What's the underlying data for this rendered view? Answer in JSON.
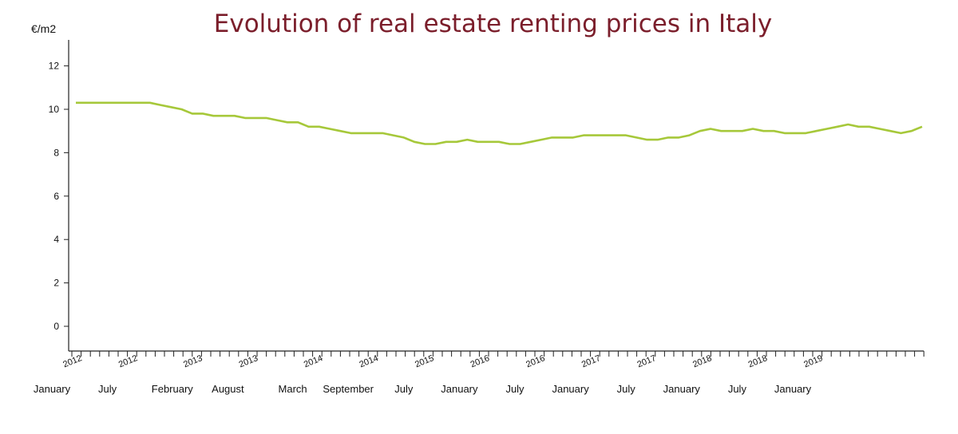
{
  "chart_data": {
    "type": "line",
    "title": "Evolution of real estate renting prices in Italy",
    "ylabel": "€/m2",
    "xlabel": "",
    "ylim": [
      -1.2,
      13
    ],
    "yticks": [
      0,
      2,
      4,
      6,
      8,
      10,
      12
    ],
    "grid": false,
    "legend": "none",
    "line_color": "#a6c83a",
    "x_tick_count": 93,
    "x_labels": [
      {
        "year": "2012",
        "month": "January",
        "tick": 0
      },
      {
        "year": "2012",
        "month": "July",
        "tick": 6
      },
      {
        "year": "2013",
        "month": "February",
        "tick": 13
      },
      {
        "year": "2013",
        "month": "August",
        "tick": 19
      },
      {
        "year": "2014",
        "month": "March",
        "tick": 26
      },
      {
        "year": "2014",
        "month": "September",
        "tick": 32
      },
      {
        "year": "2015",
        "month": "July",
        "tick": 38
      },
      {
        "year": "2016",
        "month": "January",
        "tick": 44
      },
      {
        "year": "2016",
        "month": "July",
        "tick": 50
      },
      {
        "year": "2017",
        "month": "January",
        "tick": 56
      },
      {
        "year": "2017",
        "month": "July",
        "tick": 62
      },
      {
        "year": "2018",
        "month": "January",
        "tick": 68
      },
      {
        "year": "2018",
        "month": "July",
        "tick": 74
      },
      {
        "year": "2019",
        "month": "January",
        "tick": 80
      }
    ],
    "series": [
      {
        "values": [
          10.3,
          10.3,
          10.3,
          10.3,
          10.3,
          10.3,
          10.3,
          10.3,
          10.2,
          10.1,
          10.0,
          9.8,
          9.8,
          9.7,
          9.7,
          9.7,
          9.6,
          9.6,
          9.6,
          9.5,
          9.4,
          9.4,
          9.2,
          9.2,
          9.1,
          9.0,
          8.9,
          8.9,
          8.9,
          8.9,
          8.8,
          8.7,
          8.5,
          8.4,
          8.4,
          8.5,
          8.5,
          8.6,
          8.5,
          8.5,
          8.5,
          8.4,
          8.4,
          8.5,
          8.6,
          8.7,
          8.7,
          8.7,
          8.8,
          8.8,
          8.8,
          8.8,
          8.8,
          8.7,
          8.6,
          8.6,
          8.7,
          8.7,
          8.8,
          9.0,
          9.1,
          9.0,
          9.0,
          9.0,
          9.1,
          9.0,
          9.0,
          8.9,
          8.9,
          8.9,
          9.0,
          9.1,
          9.2,
          9.3,
          9.2,
          9.2,
          9.1,
          9.0,
          8.9,
          9.0,
          9.2
        ]
      }
    ]
  }
}
